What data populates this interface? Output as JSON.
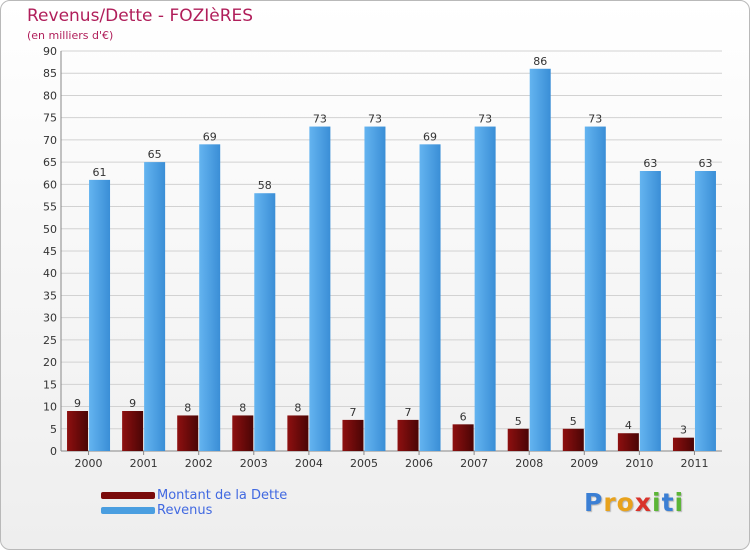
{
  "chart_data": {
    "type": "bar",
    "title": "Revenus/Dette - FOZIèRES",
    "subtitle": "(en milliers d'€)",
    "categories": [
      "2000",
      "2001",
      "2002",
      "2003",
      "2004",
      "2005",
      "2006",
      "2007",
      "2008",
      "2009",
      "2010",
      "2011"
    ],
    "series": [
      {
        "name": "Montant de la Dette",
        "color": "#7a0a0a",
        "values": [
          9,
          9,
          8,
          8,
          8,
          7,
          7,
          6,
          5,
          5,
          4,
          3
        ]
      },
      {
        "name": "Revenus",
        "color": "#4a9ee0",
        "values": [
          61,
          65,
          69,
          58,
          73,
          73,
          69,
          73,
          86,
          73,
          63,
          63
        ]
      }
    ],
    "ylim": [
      0,
      90
    ],
    "yticks": [
      0,
      5,
      10,
      15,
      20,
      25,
      30,
      35,
      40,
      45,
      50,
      55,
      60,
      65,
      70,
      75,
      80,
      85,
      90
    ],
    "grid": true,
    "legend_position": "bottom-left"
  },
  "branding": {
    "logo_letters": [
      "P",
      "r",
      "o",
      "x",
      "i",
      "t",
      "i"
    ],
    "logo_colors": [
      "#3b7fd4",
      "#e8a21c",
      "#e8a21c",
      "#d9332b",
      "#5bb536",
      "#3b7fd4",
      "#5bb536"
    ]
  }
}
